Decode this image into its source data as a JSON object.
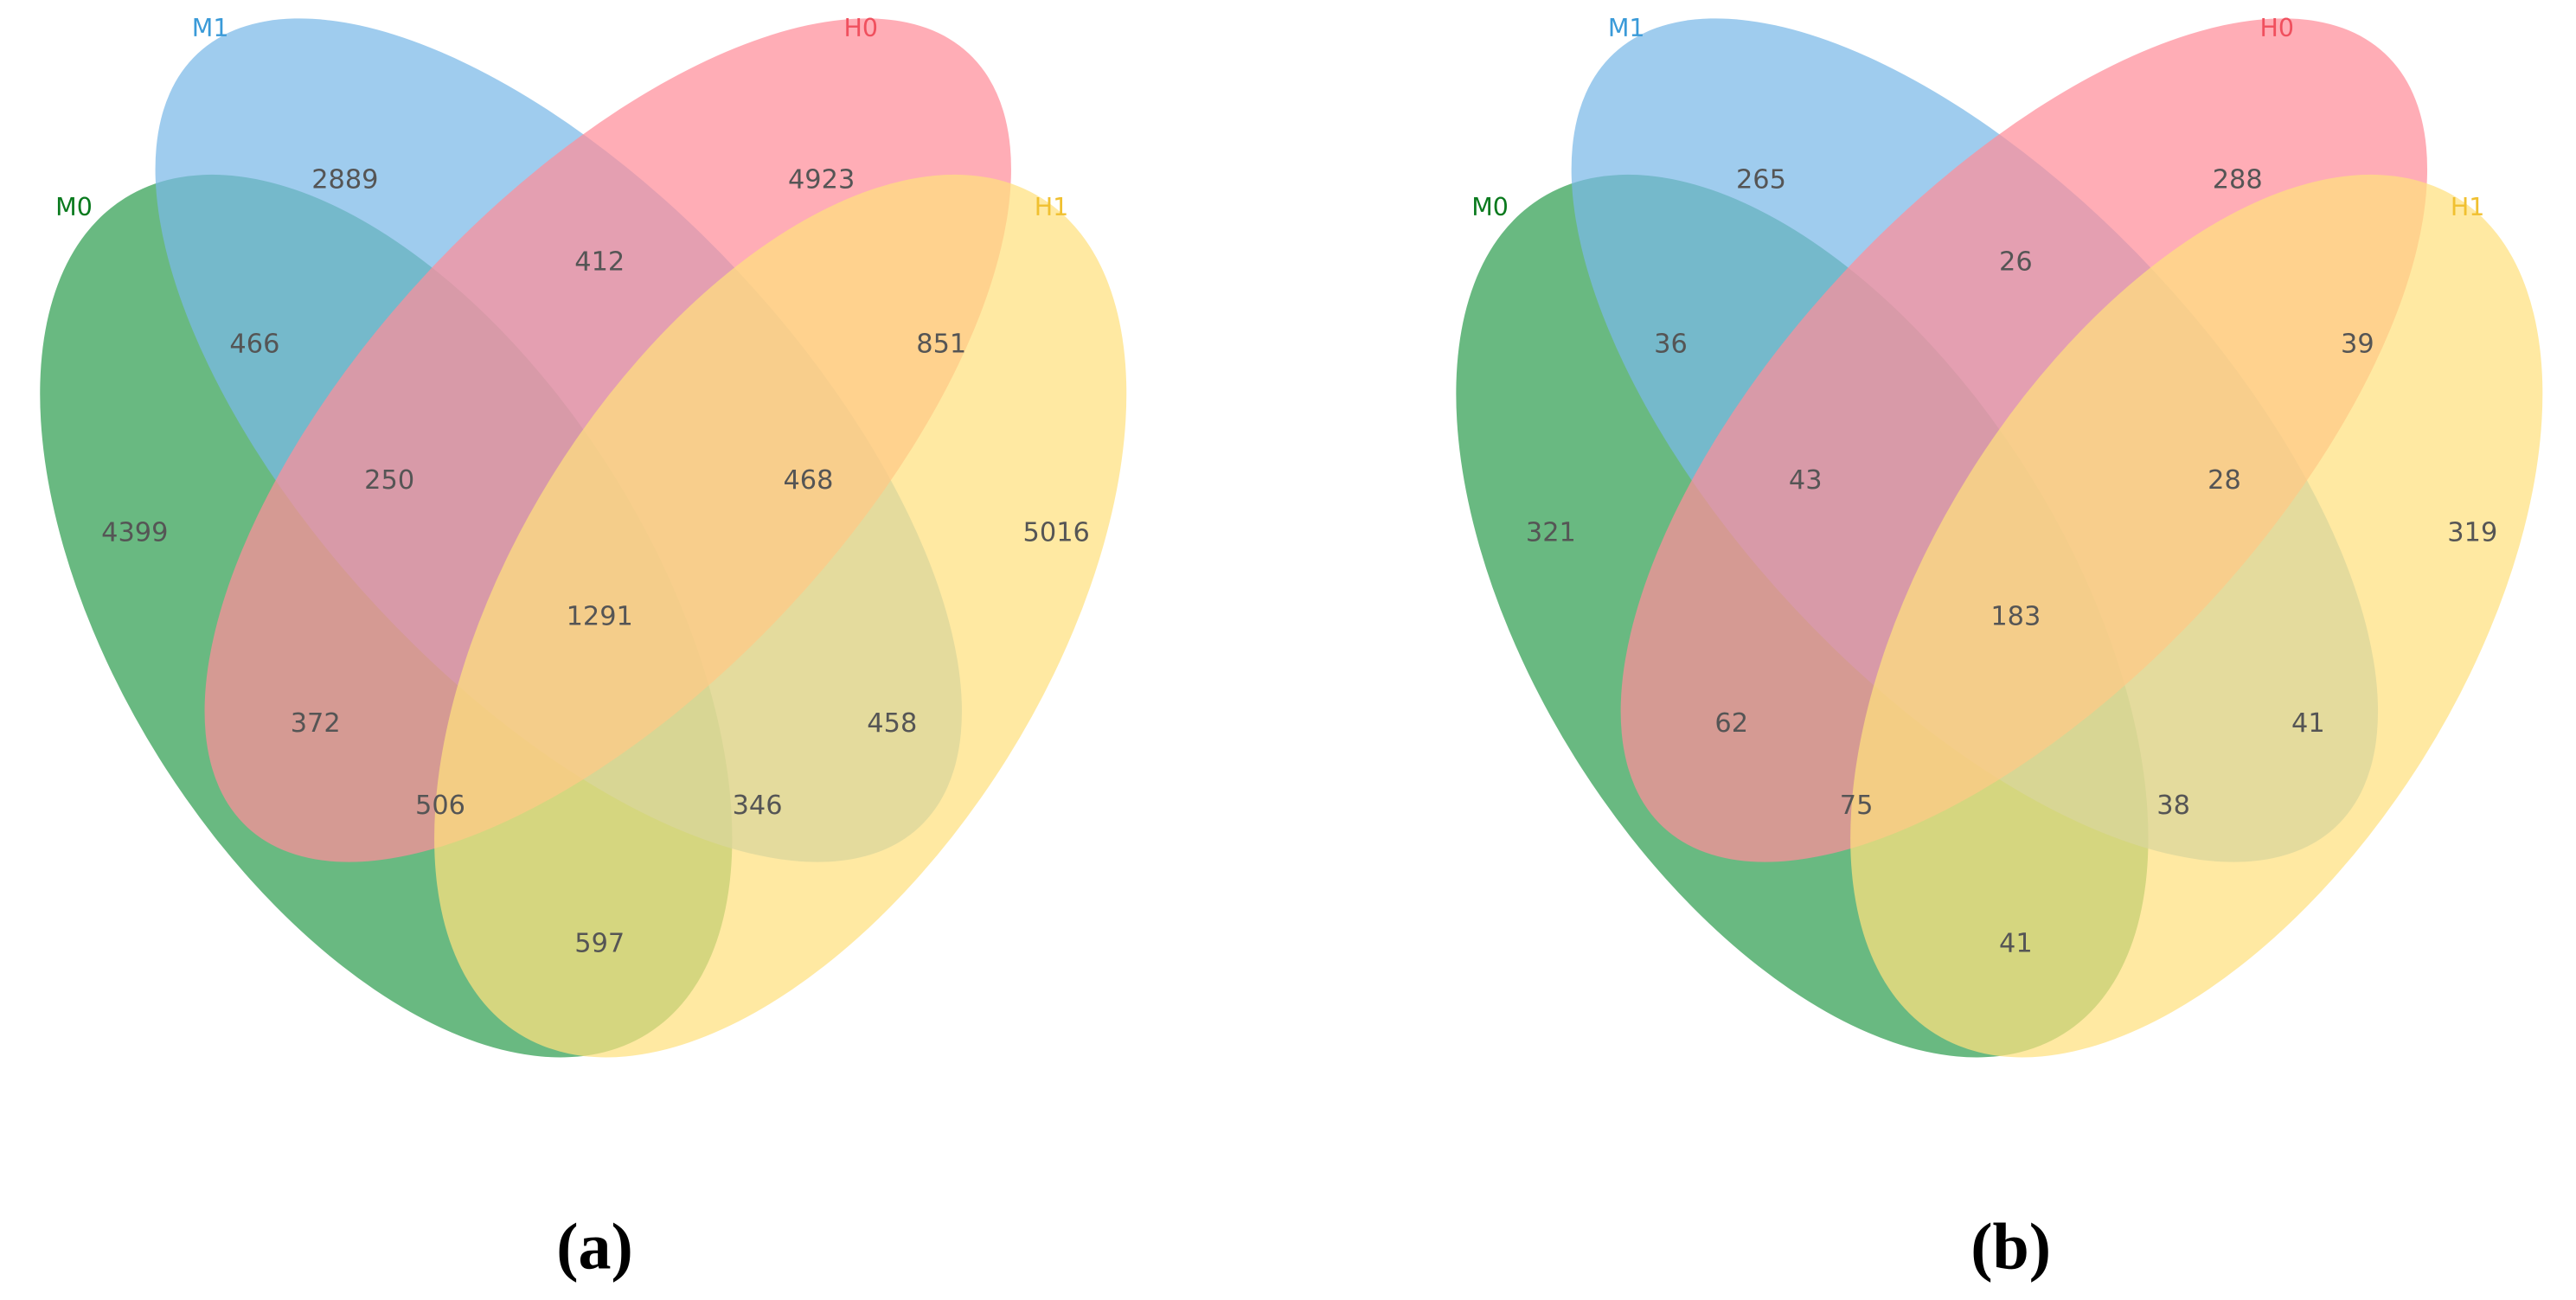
{
  "chart_data": [
    {
      "type": "venn",
      "caption": "(a)",
      "sets": [
        {
          "name": "M0",
          "color": "#2f9e50",
          "label_color": "#0a7a1e"
        },
        {
          "name": "M1",
          "color": "#7ab9e8",
          "label_color": "#3a9ad8"
        },
        {
          "name": "H0",
          "color": "#ff8e9a",
          "label_color": "#f0505e"
        },
        {
          "name": "H1",
          "color": "#ffe07e",
          "label_color": "#f0c030"
        }
      ],
      "values": [
        2889,
        4923,
        466,
        412,
        851,
        4399,
        250,
        468,
        5016,
        1291,
        372,
        458,
        506,
        346,
        597
      ]
    },
    {
      "type": "venn",
      "caption": "(b)",
      "sets": [
        {
          "name": "M0",
          "color": "#2f9e50",
          "label_color": "#0a7a1e"
        },
        {
          "name": "M1",
          "color": "#7ab9e8",
          "label_color": "#3a9ad8"
        },
        {
          "name": "H0",
          "color": "#ff8e9a",
          "label_color": "#f0505e"
        },
        {
          "name": "H1",
          "color": "#ffe07e",
          "label_color": "#f0c030"
        }
      ],
      "values": [
        265,
        288,
        36,
        26,
        39,
        321,
        43,
        28,
        319,
        183,
        62,
        41,
        75,
        38,
        41
      ]
    }
  ]
}
